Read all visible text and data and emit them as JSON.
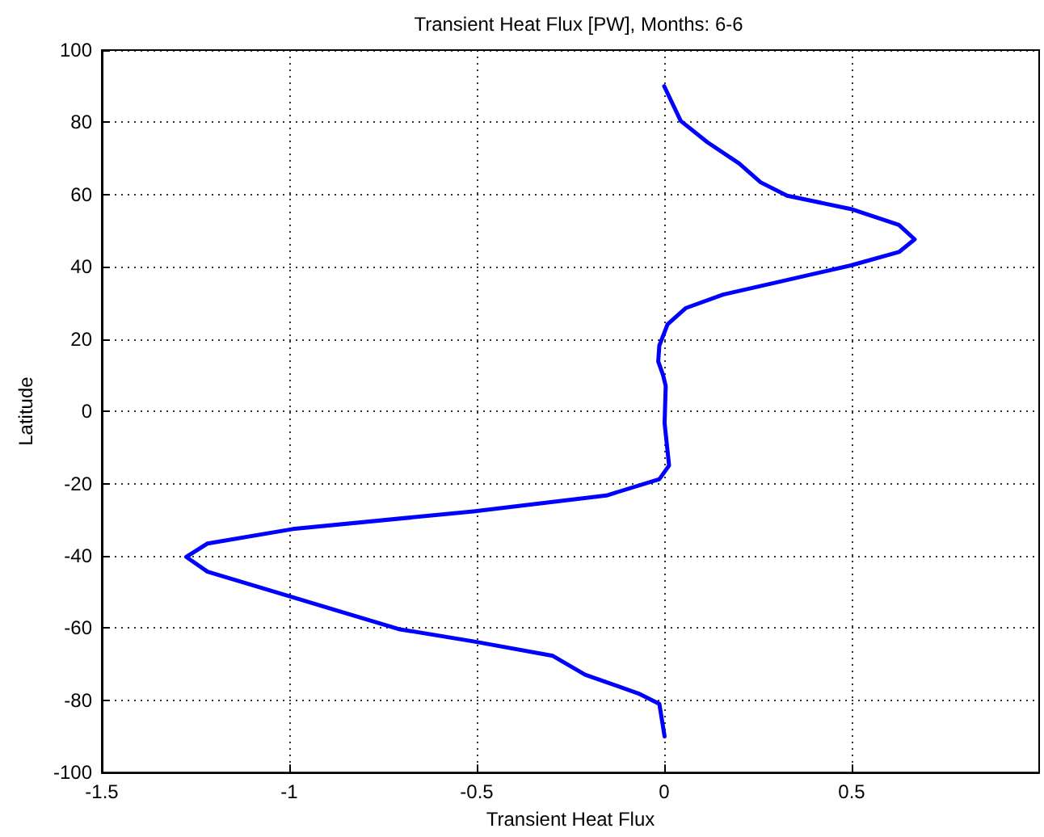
{
  "chart_data": {
    "type": "line",
    "title": "Transient Heat Flux [PW], Months: 6-6",
    "xlabel": "Transient Heat Flux",
    "ylabel": "Latitude",
    "xlim": [
      -1.5,
      1
    ],
    "xticks": [
      -1.5,
      -1,
      -0.5,
      0,
      0.5
    ],
    "ylim": [
      -100,
      100
    ],
    "yticks": [
      -100,
      -80,
      -60,
      -40,
      -20,
      0,
      20,
      40,
      60,
      80,
      100
    ],
    "grid": true,
    "line_style": "solid",
    "marker": "none",
    "series": [
      {
        "color": "#0000ff",
        "x": [
          0,
          0.044,
          0.115,
          0.2,
          0.257,
          0.328,
          0.498,
          0.626,
          0.668,
          0.626,
          0.498,
          0.313,
          0.157,
          0.058,
          0.009,
          -0.013,
          -0.016,
          -0.003,
          0.004,
          0.001,
          0.013,
          -0.013,
          -0.154,
          -0.509,
          -0.991,
          -1.218,
          -1.275,
          -1.218,
          -1.006,
          -0.708,
          -0.509,
          -0.297,
          -0.211,
          -0.069,
          -0.013,
          -0.006,
          0.001
        ],
        "values": [
          90,
          80.4,
          74.5,
          68.6,
          63.4,
          59.7,
          56,
          51.6,
          47.6,
          44.1,
          40.4,
          36,
          32.3,
          28.6,
          24.1,
          18.2,
          13.8,
          10,
          7,
          -3.3,
          -15,
          -18.8,
          -23.3,
          -27.7,
          -32.6,
          -36.6,
          -40.3,
          -44.4,
          -51,
          -60.3,
          -63.7,
          -67.7,
          -72.9,
          -78.1,
          -81,
          -85.5,
          -90
        ]
      }
    ]
  }
}
